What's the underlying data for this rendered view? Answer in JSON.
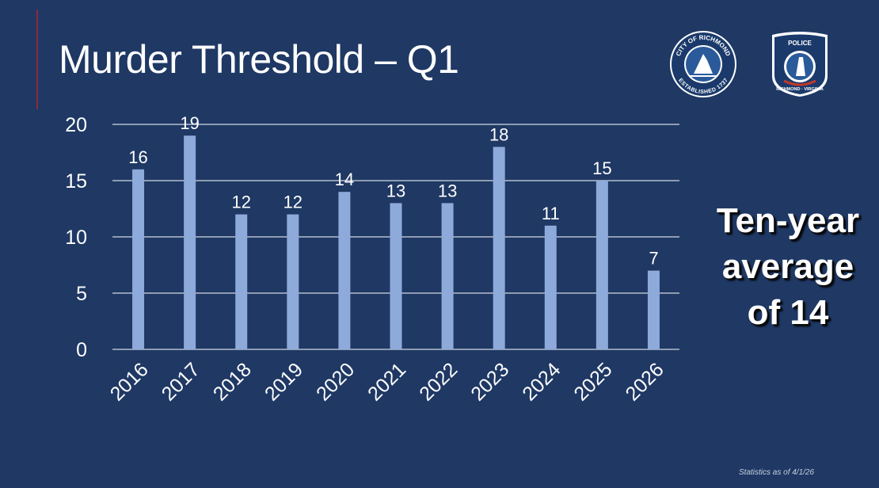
{
  "slide": {
    "title": "Murder Threshold – Q1",
    "callout_lines": [
      "Ten-year",
      "average",
      "of 14"
    ],
    "footnote": "Statistics as of 4/1/26",
    "logos": {
      "city_text_top": "CITY OF RICHMOND",
      "city_text_bottom": "ESTABLISHED 1737",
      "police_text_top": "POLICE",
      "police_text_bottom": "RICHMOND · VIRGINIA"
    }
  },
  "colors": {
    "background": "#1f3864",
    "bar": "#8eaadb",
    "gridline": "#ffffff",
    "text": "#ffffff",
    "accent_line": "#8b2a3a"
  },
  "chart_data": {
    "type": "bar",
    "title": "",
    "xlabel": "",
    "ylabel": "",
    "categories": [
      "2016",
      "2017",
      "2018",
      "2019",
      "2020",
      "2021",
      "2022",
      "2023",
      "2024",
      "2025",
      "2026"
    ],
    "values": [
      16,
      19,
      12,
      12,
      14,
      13,
      13,
      18,
      11,
      15,
      7
    ],
    "ylim": [
      0,
      20
    ],
    "yticks": [
      0,
      5,
      10,
      15,
      20
    ],
    "grid": true,
    "legend": "none",
    "data_labels": true,
    "x_tick_rotation": "-45deg"
  }
}
